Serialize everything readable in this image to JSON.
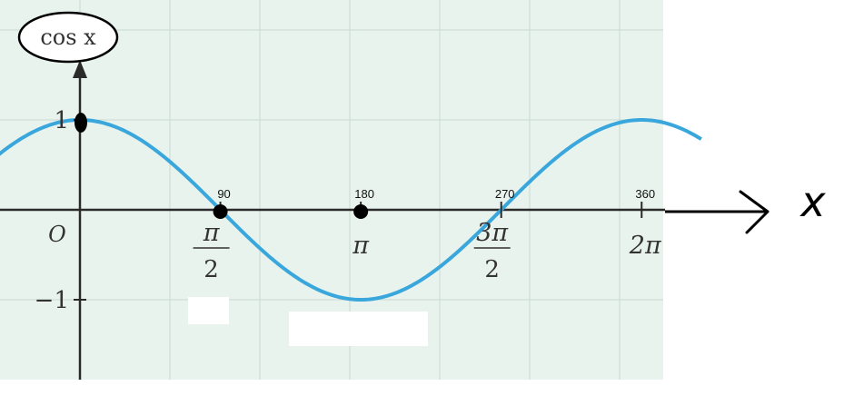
{
  "chart_data": {
    "type": "line",
    "ylabel": "cos x",
    "xlabel": "x",
    "origin_label": "O",
    "xlim": [
      -1.4,
      6.95
    ],
    "ylim": [
      -1.9,
      2.0
    ],
    "grid": true,
    "y_ticks": [
      {
        "value": 1,
        "label": "1"
      },
      {
        "value": -1,
        "label": "−1"
      }
    ],
    "x_ticks": [
      {
        "value": 1.5708,
        "num": "π",
        "den": "2",
        "degrees": "90"
      },
      {
        "value": 3.1416,
        "num": "π",
        "den": "",
        "degrees": "180"
      },
      {
        "value": 4.7124,
        "num": "3π",
        "den": "2",
        "degrees": "270"
      },
      {
        "value": 6.2832,
        "num": "2π",
        "den": "",
        "degrees": "360"
      }
    ],
    "series": [
      {
        "function": "cos",
        "x_range": [
          -1.4,
          6.95
        ],
        "color": "#3aa7dc"
      }
    ],
    "marked_points": [
      {
        "x": 0,
        "y": 1
      },
      {
        "x": 1.5708,
        "y": 0
      },
      {
        "x": 3.1416,
        "y": 0
      }
    ],
    "colors": {
      "plot_bg": "#e9f3ee",
      "grid": "#c9d9d1",
      "axis": "#2a2a2a",
      "curve": "#3aa7dc",
      "marker": "#000000"
    }
  }
}
